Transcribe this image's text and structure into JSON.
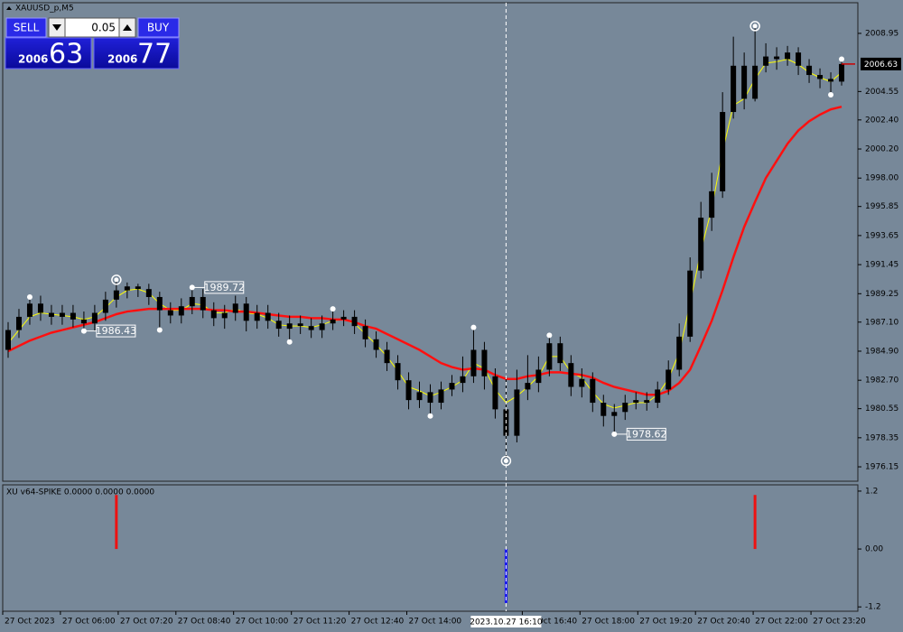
{
  "symbol": "XAUUSD_p,M5",
  "trade_panel": {
    "sell": "SELL",
    "buy": "BUY",
    "lot": "0.05",
    "bid_big": "2006",
    "bid_small": "63",
    "ask_big": "2006",
    "ask_small": "77"
  },
  "cursor": {
    "x": 46,
    "label": "2023.10.27 16:10"
  },
  "chart_data": [
    {
      "type": "candlestick",
      "xlim": [
        0,
        79
      ],
      "xticks": [
        {
          "value": 0,
          "label": "27 Oct 2023"
        },
        {
          "value": 5.33,
          "label": "27 Oct 06:00"
        },
        {
          "value": 10.67,
          "label": "27 Oct 07:20"
        },
        {
          "value": 16,
          "label": "27 Oct 08:40"
        },
        {
          "value": 21.33,
          "label": "27 Oct 10:00"
        },
        {
          "value": 26.67,
          "label": "27 Oct 11:20"
        },
        {
          "value": 32,
          "label": "27 Oct 12:40"
        },
        {
          "value": 37.33,
          "label": "27 Oct 14:00"
        },
        {
          "value": 48,
          "label": "27 Oct 16:40"
        },
        {
          "value": 53.33,
          "label": "27 Oct 18:00"
        },
        {
          "value": 58.67,
          "label": "27 Oct 19:20"
        },
        {
          "value": 64,
          "label": "27 Oct 20:40"
        },
        {
          "value": 69.33,
          "label": "27 Oct 22:00"
        },
        {
          "value": 74.67,
          "label": "27 Oct 23:20"
        }
      ],
      "ylim": [
        1975.06,
        2011.27
      ],
      "yticks": [
        2008.95,
        2004.55,
        {
          "value": 2002.4,
          "label": "2002.40"
        },
        {
          "value": 2000.2,
          "label": "2000.20"
        },
        {
          "value": 1998,
          "label": "1998.00"
        },
        1995.85,
        1993.65,
        1991.45,
        1989.25,
        {
          "value": 1987.1,
          "label": "1987.10"
        },
        {
          "value": 1984.9,
          "label": "1984.90"
        },
        {
          "value": 1982.7,
          "label": "1982.70"
        },
        1980.55,
        1978.35,
        1976.15
      ],
      "current_price": 2006.63,
      "candle_color": "#000000",
      "open": [
        1985.0,
        1986.5,
        1987.5,
        1988.5,
        1987.8,
        1987.5,
        1987.8,
        1987.3,
        1987.0,
        1987.8,
        1988.8,
        1989.5,
        1989.8,
        1989.6,
        1989.0,
        1988.0,
        1987.6,
        1988.3,
        1989.0,
        1988.0,
        1987.4,
        1987.8,
        1988.5,
        1987.2,
        1987.8,
        1987.2,
        1986.6,
        1987.0,
        1986.8,
        1986.5,
        1987.0,
        1987.3,
        1987.5,
        1986.8,
        1985.8,
        1985.0,
        1984.0,
        1982.7,
        1981.2,
        1981.8,
        1981.0,
        1982.0,
        1982.5,
        1983.0,
        1985.0,
        1983.0,
        1980.5,
        1978.5,
        1982.0,
        1982.5,
        1983.5,
        1985.5,
        1984.0,
        1982.2,
        1982.8,
        1981.0,
        1980.0,
        1980.3,
        1981.0,
        1981.2,
        1981.0,
        1982.0,
        1983.5,
        1986.0,
        1991.0,
        1995.0,
        1997.0,
        2003.0,
        2006.5,
        2004.0,
        2006.5,
        2007.2,
        2007.0,
        2007.5,
        2006.5,
        2005.8,
        2005.5,
        2005.3
      ],
      "high": [
        1987.1,
        1988.1,
        1989.0,
        1989.1,
        1988.4,
        1988.4,
        1988.4,
        1987.9,
        1988.4,
        1989.4,
        1990.3,
        1990.1,
        1990.0,
        1990.0,
        1989.4,
        1988.6,
        1988.9,
        1989.8,
        1989.6,
        1988.6,
        1988.4,
        1989.1,
        1989.0,
        1988.4,
        1988.4,
        1987.8,
        1987.6,
        1987.6,
        1987.4,
        1987.6,
        1988.1,
        1988.0,
        1988.0,
        1987.3,
        1986.4,
        1985.6,
        1984.6,
        1983.3,
        1982.6,
        1982.4,
        1982.6,
        1983.1,
        1984.5,
        1986.7,
        1985.6,
        1983.6,
        1983.0,
        1983.5,
        1984.6,
        1984.5,
        1986.1,
        1986.0,
        1984.6,
        1983.6,
        1983.3,
        1981.6,
        1980.9,
        1981.6,
        1981.8,
        1981.8,
        1982.6,
        1984.2,
        1987.0,
        1992.0,
        1996.2,
        1998.4,
        2004.5,
        2008.7,
        2007.5,
        2009.5,
        2008.2,
        2007.9,
        2008.0,
        2007.9,
        2007.0,
        2006.3,
        2006.0,
        2007.0
      ],
      "low": [
        1984.4,
        1985.9,
        1986.9,
        1987.2,
        1986.9,
        1986.9,
        1986.7,
        1986.4,
        1986.4,
        1987.2,
        1988.2,
        1988.9,
        1989.0,
        1988.4,
        1986.5,
        1987.0,
        1987.0,
        1987.7,
        1987.4,
        1986.8,
        1986.6,
        1987.2,
        1986.4,
        1986.6,
        1986.6,
        1986.0,
        1985.6,
        1986.2,
        1985.9,
        1985.9,
        1986.5,
        1986.8,
        1986.2,
        1985.2,
        1984.4,
        1983.4,
        1982.0,
        1980.5,
        1980.6,
        1980.0,
        1980.5,
        1981.5,
        1981.8,
        1982.5,
        1982.0,
        1979.8,
        1976.6,
        1978.0,
        1981.2,
        1981.8,
        1983.0,
        1983.4,
        1981.5,
        1981.4,
        1980.3,
        1979.2,
        1978.6,
        1979.7,
        1980.5,
        1980.4,
        1980.6,
        1981.6,
        1983.0,
        1985.6,
        1990.4,
        1994.0,
        1996.5,
        2002.5,
        2003.2,
        2003.8,
        2006.0,
        2006.2,
        2006.5,
        2005.8,
        2005.2,
        2004.8,
        2004.3,
        2005.0
      ],
      "close": [
        1986.5,
        1987.5,
        1988.5,
        1987.8,
        1987.5,
        1987.8,
        1987.3,
        1987.0,
        1987.8,
        1988.8,
        1989.5,
        1989.8,
        1989.6,
        1989.0,
        1988.0,
        1987.6,
        1988.3,
        1989.0,
        1988.0,
        1987.4,
        1987.8,
        1988.5,
        1987.2,
        1987.8,
        1987.2,
        1986.6,
        1987.0,
        1986.8,
        1986.5,
        1987.0,
        1987.3,
        1987.5,
        1986.8,
        1985.8,
        1985.0,
        1984.0,
        1982.7,
        1981.2,
        1981.8,
        1981.0,
        1982.0,
        1982.5,
        1983.0,
        1985.0,
        1983.0,
        1980.5,
        1978.5,
        1982.0,
        1982.5,
        1983.5,
        1985.5,
        1984.0,
        1982.2,
        1982.8,
        1981.0,
        1980.0,
        1980.3,
        1981.0,
        1981.2,
        1981.0,
        1982.0,
        1983.5,
        1986.0,
        1991.0,
        1995.0,
        1997.0,
        2003.0,
        2006.5,
        2004.0,
        2006.5,
        2007.2,
        2007.0,
        2007.5,
        2006.5,
        2005.8,
        2005.5,
        2005.3,
        2006.63
      ],
      "series": [
        {
          "color": "#ffff00",
          "values": [
            1985.5,
            1986.5,
            1987.5,
            1987.8,
            1987.7,
            1987.6,
            1987.5,
            1987.3,
            1987.5,
            1988.2,
            1989.0,
            1989.5,
            1989.6,
            1989.3,
            1988.5,
            1988.0,
            1988.0,
            1988.5,
            1988.4,
            1987.8,
            1987.8,
            1988.1,
            1987.8,
            1987.7,
            1987.4,
            1986.9,
            1986.8,
            1986.8,
            1986.7,
            1986.9,
            1987.2,
            1987.3,
            1987.0,
            1986.2,
            1985.4,
            1984.5,
            1983.4,
            1982.2,
            1981.9,
            1981.5,
            1981.8,
            1982.2,
            1982.7,
            1984.0,
            1983.6,
            1982.0,
            1981.0,
            1981.5,
            1982.2,
            1983.0,
            1984.5,
            1984.5,
            1983.3,
            1982.9,
            1981.8,
            1980.9,
            1980.6,
            1980.8,
            1981.0,
            1981.0,
            1981.6,
            1982.8,
            1984.8,
            1988.5,
            1992.5,
            1995.7,
            2000.0,
            2003.5,
            2004.0,
            2005.5,
            2006.7,
            2006.8,
            2007.0,
            2006.6,
            2006.0,
            2005.6,
            2005.3,
            2006.0
          ]
        },
        {
          "color": "#ff1010",
          "values": [
            1984.9,
            1985.3,
            1985.7,
            1986.0,
            1986.3,
            1986.5,
            1986.7,
            1986.9,
            1987.1,
            1987.4,
            1987.7,
            1987.9,
            1988.0,
            1988.1,
            1988.1,
            1988.1,
            1988.1,
            1988.1,
            1988.1,
            1988.0,
            1988.0,
            1987.9,
            1987.9,
            1987.8,
            1987.7,
            1987.6,
            1987.5,
            1987.5,
            1987.4,
            1987.4,
            1987.3,
            1987.3,
            1987.1,
            1986.8,
            1986.6,
            1986.2,
            1985.8,
            1985.4,
            1985.0,
            1984.5,
            1984.0,
            1983.7,
            1983.5,
            1983.6,
            1983.5,
            1983.1,
            1982.8,
            1982.8,
            1983.0,
            1983.1,
            1983.3,
            1983.3,
            1983.2,
            1983.1,
            1982.9,
            1982.5,
            1982.2,
            1982.0,
            1981.8,
            1981.6,
            1981.6,
            1981.9,
            1982.5,
            1983.5,
            1985.3,
            1987.2,
            1989.5,
            1992.0,
            1994.3,
            1996.2,
            1998.0,
            1999.3,
            2000.6,
            2001.6,
            2002.3,
            2002.8,
            2003.2,
            2003.4
          ]
        }
      ],
      "fractals": [
        {
          "x": 2,
          "value": 1989.0
        },
        {
          "x": 14,
          "value": 1986.5
        },
        {
          "x": 26,
          "value": 1985.6
        },
        {
          "x": 30,
          "value": 1988.1
        },
        {
          "x": 39,
          "value": 1980.0
        },
        {
          "x": 43,
          "value": 1986.7
        },
        {
          "x": 50,
          "value": 1986.1
        },
        {
          "x": 76,
          "value": 2004.3
        },
        {
          "x": 77,
          "value": 2007.0
        }
      ],
      "price_labels": [
        {
          "x": 7,
          "value": 1986.43
        },
        {
          "x": 17,
          "value": 1989.72
        },
        {
          "x": 56,
          "value": 1978.62
        }
      ],
      "extremes": [
        {
          "x": 10,
          "value": 1990.3
        },
        {
          "x": 46,
          "value": 1976.6
        },
        {
          "x": 69,
          "value": 2009.5
        }
      ]
    },
    {
      "type": "bar",
      "title": "XU v64-SPIKE 0.0000 0.0000 0.0000",
      "xlim": [
        0,
        79
      ],
      "ylim": [
        -1.29,
        1.33
      ],
      "yticks": [
        1.2,
        {
          "value": 0,
          "label": "0.00"
        },
        -1.2
      ],
      "x": [
        10,
        46,
        69
      ],
      "values": [
        1.12,
        -1.12,
        1.12
      ],
      "colors": [
        "#ee1111",
        "#1a1aee",
        "#ee1111"
      ]
    }
  ]
}
